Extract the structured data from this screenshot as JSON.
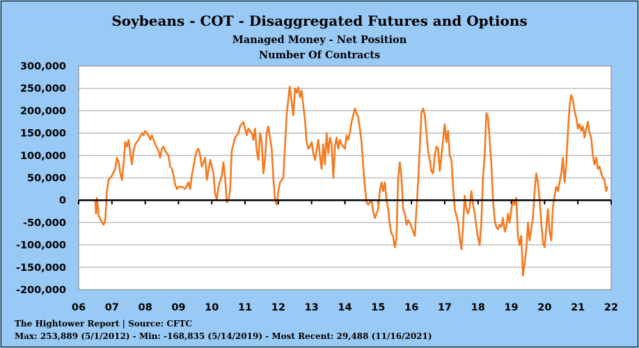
{
  "colors": {
    "background": "#99c9f5",
    "plot_area": "#ffffff",
    "series_line": "#f47a20",
    "zero_line": "#000000"
  },
  "chart_data": {
    "type": "line",
    "title": "Soybeans - COT - Disaggregated Futures and Options",
    "subtitle": "Managed Money - Net Position",
    "subtitle2": "Number Of Contracts",
    "xlabel": "",
    "ylabel": "",
    "xlim": [
      2006,
      2022
    ],
    "ylim": [
      -200000,
      300000
    ],
    "x_ticks": [
      "06",
      "07",
      "08",
      "09",
      "10",
      "11",
      "12",
      "13",
      "14",
      "15",
      "16",
      "17",
      "18",
      "19",
      "20",
      "21",
      "22"
    ],
    "y_ticks": [
      "300,000",
      "250,000",
      "200,000",
      "150,000",
      "100,000",
      "50,000",
      "0",
      "-50,000",
      "-100,000",
      "-150,000",
      "-200,000"
    ],
    "grid": true,
    "series": [
      {
        "values": [
          [
            2006.5,
            0
          ],
          [
            2006.52,
            -30000
          ],
          [
            2006.55,
            5000
          ],
          [
            2006.6,
            -35000
          ],
          [
            2006.65,
            -42000
          ],
          [
            2006.7,
            -50000
          ],
          [
            2006.75,
            -55000
          ],
          [
            2006.8,
            -45000
          ],
          [
            2006.85,
            20000
          ],
          [
            2006.9,
            45000
          ],
          [
            2006.95,
            50000
          ],
          [
            2007.0,
            55000
          ],
          [
            2007.1,
            70000
          ],
          [
            2007.15,
            95000
          ],
          [
            2007.2,
            85000
          ],
          [
            2007.25,
            60000
          ],
          [
            2007.3,
            45000
          ],
          [
            2007.35,
            80000
          ],
          [
            2007.4,
            130000
          ],
          [
            2007.45,
            120000
          ],
          [
            2007.5,
            135000
          ],
          [
            2007.55,
            105000
          ],
          [
            2007.6,
            80000
          ],
          [
            2007.65,
            110000
          ],
          [
            2007.7,
            125000
          ],
          [
            2007.8,
            135000
          ],
          [
            2007.9,
            150000
          ],
          [
            2007.95,
            145000
          ],
          [
            2008.0,
            155000
          ],
          [
            2008.1,
            145000
          ],
          [
            2008.15,
            135000
          ],
          [
            2008.2,
            145000
          ],
          [
            2008.3,
            125000
          ],
          [
            2008.4,
            110000
          ],
          [
            2008.45,
            95000
          ],
          [
            2008.5,
            115000
          ],
          [
            2008.55,
            120000
          ],
          [
            2008.6,
            110000
          ],
          [
            2008.7,
            100000
          ],
          [
            2008.75,
            75000
          ],
          [
            2008.8,
            70000
          ],
          [
            2008.85,
            55000
          ],
          [
            2008.9,
            35000
          ],
          [
            2008.95,
            25000
          ],
          [
            2009.0,
            30000
          ],
          [
            2009.1,
            30000
          ],
          [
            2009.2,
            25000
          ],
          [
            2009.3,
            40000
          ],
          [
            2009.35,
            25000
          ],
          [
            2009.4,
            55000
          ],
          [
            2009.5,
            95000
          ],
          [
            2009.55,
            110000
          ],
          [
            2009.6,
            115000
          ],
          [
            2009.65,
            100000
          ],
          [
            2009.7,
            75000
          ],
          [
            2009.8,
            95000
          ],
          [
            2009.85,
            45000
          ],
          [
            2009.95,
            90000
          ],
          [
            2010.0,
            75000
          ],
          [
            2010.05,
            60000
          ],
          [
            2010.1,
            15000
          ],
          [
            2010.15,
            0
          ],
          [
            2010.2,
            30000
          ],
          [
            2010.3,
            55000
          ],
          [
            2010.35,
            85000
          ],
          [
            2010.4,
            50000
          ],
          [
            2010.45,
            -5000
          ],
          [
            2010.5,
            0
          ],
          [
            2010.55,
            20000
          ],
          [
            2010.6,
            110000
          ],
          [
            2010.7,
            140000
          ],
          [
            2010.75,
            145000
          ],
          [
            2010.8,
            150000
          ],
          [
            2010.85,
            165000
          ],
          [
            2010.9,
            170000
          ],
          [
            2010.95,
            175000
          ],
          [
            2011.0,
            160000
          ],
          [
            2011.05,
            145000
          ],
          [
            2011.1,
            160000
          ],
          [
            2011.2,
            150000
          ],
          [
            2011.25,
            135000
          ],
          [
            2011.3,
            160000
          ],
          [
            2011.35,
            110000
          ],
          [
            2011.4,
            90000
          ],
          [
            2011.45,
            150000
          ],
          [
            2011.5,
            130000
          ],
          [
            2011.55,
            60000
          ],
          [
            2011.6,
            90000
          ],
          [
            2011.65,
            150000
          ],
          [
            2011.7,
            165000
          ],
          [
            2011.8,
            115000
          ],
          [
            2011.85,
            50000
          ],
          [
            2011.9,
            0
          ],
          [
            2011.95,
            -10000
          ],
          [
            2012.0,
            20000
          ],
          [
            2012.05,
            40000
          ],
          [
            2012.15,
            50000
          ],
          [
            2012.2,
            120000
          ],
          [
            2012.25,
            190000
          ],
          [
            2012.3,
            225000
          ],
          [
            2012.34,
            253889
          ],
          [
            2012.4,
            220000
          ],
          [
            2012.45,
            190000
          ],
          [
            2012.5,
            250000
          ],
          [
            2012.55,
            240000
          ],
          [
            2012.6,
            252000
          ],
          [
            2012.65,
            230000
          ],
          [
            2012.7,
            245000
          ],
          [
            2012.8,
            180000
          ],
          [
            2012.85,
            130000
          ],
          [
            2012.9,
            115000
          ],
          [
            2012.95,
            120000
          ],
          [
            2013.0,
            130000
          ],
          [
            2013.05,
            105000
          ],
          [
            2013.1,
            90000
          ],
          [
            2013.2,
            135000
          ],
          [
            2013.25,
            100000
          ],
          [
            2013.3,
            70000
          ],
          [
            2013.35,
            125000
          ],
          [
            2013.4,
            80000
          ],
          [
            2013.45,
            150000
          ],
          [
            2013.5,
            105000
          ],
          [
            2013.55,
            140000
          ],
          [
            2013.6,
            125000
          ],
          [
            2013.65,
            50000
          ],
          [
            2013.7,
            120000
          ],
          [
            2013.75,
            140000
          ],
          [
            2013.8,
            115000
          ],
          [
            2013.85,
            135000
          ],
          [
            2013.9,
            125000
          ],
          [
            2014.0,
            115000
          ],
          [
            2014.05,
            145000
          ],
          [
            2014.1,
            135000
          ],
          [
            2014.15,
            150000
          ],
          [
            2014.2,
            175000
          ],
          [
            2014.25,
            190000
          ],
          [
            2014.3,
            205000
          ],
          [
            2014.35,
            195000
          ],
          [
            2014.4,
            185000
          ],
          [
            2014.45,
            160000
          ],
          [
            2014.5,
            130000
          ],
          [
            2014.55,
            75000
          ],
          [
            2014.6,
            30000
          ],
          [
            2014.65,
            -5000
          ],
          [
            2014.7,
            -10000
          ],
          [
            2014.8,
            0
          ],
          [
            2014.85,
            -25000
          ],
          [
            2014.9,
            -40000
          ],
          [
            2015.0,
            -20000
          ],
          [
            2015.05,
            20000
          ],
          [
            2015.1,
            40000
          ],
          [
            2015.15,
            20000
          ],
          [
            2015.2,
            40000
          ],
          [
            2015.25,
            0
          ],
          [
            2015.3,
            -20000
          ],
          [
            2015.35,
            -55000
          ],
          [
            2015.4,
            -75000
          ],
          [
            2015.45,
            -80000
          ],
          [
            2015.5,
            -105000
          ],
          [
            2015.55,
            -85000
          ],
          [
            2015.6,
            50000
          ],
          [
            2015.65,
            85000
          ],
          [
            2015.7,
            50000
          ],
          [
            2015.75,
            -20000
          ],
          [
            2015.8,
            -30000
          ],
          [
            2015.85,
            -55000
          ],
          [
            2015.9,
            -45000
          ],
          [
            2015.95,
            -50000
          ],
          [
            2016.0,
            -60000
          ],
          [
            2016.05,
            -70000
          ],
          [
            2016.1,
            -80000
          ],
          [
            2016.15,
            -20000
          ],
          [
            2016.2,
            40000
          ],
          [
            2016.25,
            120000
          ],
          [
            2016.3,
            195000
          ],
          [
            2016.35,
            205000
          ],
          [
            2016.4,
            190000
          ],
          [
            2016.45,
            150000
          ],
          [
            2016.5,
            110000
          ],
          [
            2016.55,
            90000
          ],
          [
            2016.6,
            65000
          ],
          [
            2016.65,
            60000
          ],
          [
            2016.7,
            100000
          ],
          [
            2016.75,
            120000
          ],
          [
            2016.8,
            115000
          ],
          [
            2016.85,
            65000
          ],
          [
            2016.9,
            100000
          ],
          [
            2017.0,
            170000
          ],
          [
            2017.05,
            130000
          ],
          [
            2017.1,
            155000
          ],
          [
            2017.15,
            100000
          ],
          [
            2017.2,
            90000
          ],
          [
            2017.25,
            30000
          ],
          [
            2017.3,
            -20000
          ],
          [
            2017.35,
            -35000
          ],
          [
            2017.4,
            -50000
          ],
          [
            2017.45,
            -85000
          ],
          [
            2017.5,
            -110000
          ],
          [
            2017.55,
            -60000
          ],
          [
            2017.6,
            10000
          ],
          [
            2017.65,
            -20000
          ],
          [
            2017.7,
            -30000
          ],
          [
            2017.75,
            -15000
          ],
          [
            2017.8,
            20000
          ],
          [
            2017.85,
            -10000
          ],
          [
            2017.9,
            -30000
          ],
          [
            2017.95,
            -60000
          ],
          [
            2018.0,
            -85000
          ],
          [
            2018.05,
            -100000
          ],
          [
            2018.1,
            -50000
          ],
          [
            2018.15,
            50000
          ],
          [
            2018.2,
            100000
          ],
          [
            2018.25,
            195000
          ],
          [
            2018.3,
            185000
          ],
          [
            2018.35,
            135000
          ],
          [
            2018.4,
            80000
          ],
          [
            2018.45,
            0
          ],
          [
            2018.5,
            -45000
          ],
          [
            2018.55,
            -60000
          ],
          [
            2018.6,
            -65000
          ],
          [
            2018.65,
            -55000
          ],
          [
            2018.7,
            -60000
          ],
          [
            2018.75,
            -40000
          ],
          [
            2018.8,
            -70000
          ],
          [
            2018.85,
            -60000
          ],
          [
            2018.9,
            -30000
          ],
          [
            2018.95,
            -50000
          ],
          [
            2019.0,
            -20000
          ],
          [
            2019.05,
            0
          ],
          [
            2019.1,
            -10000
          ],
          [
            2019.15,
            5000
          ],
          [
            2019.2,
            -80000
          ],
          [
            2019.25,
            -100000
          ],
          [
            2019.3,
            -80000
          ],
          [
            2019.35,
            -168835
          ],
          [
            2019.4,
            -140000
          ],
          [
            2019.45,
            -110000
          ],
          [
            2019.5,
            -50000
          ],
          [
            2019.55,
            -90000
          ],
          [
            2019.6,
            -65000
          ],
          [
            2019.65,
            -40000
          ],
          [
            2019.7,
            20000
          ],
          [
            2019.75,
            60000
          ],
          [
            2019.8,
            40000
          ],
          [
            2019.85,
            0
          ],
          [
            2019.9,
            -50000
          ],
          [
            2019.95,
            -95000
          ],
          [
            2020.0,
            -105000
          ],
          [
            2020.05,
            -60000
          ],
          [
            2020.1,
            -20000
          ],
          [
            2020.15,
            -70000
          ],
          [
            2020.2,
            -90000
          ],
          [
            2020.25,
            -15000
          ],
          [
            2020.3,
            10000
          ],
          [
            2020.35,
            30000
          ],
          [
            2020.4,
            20000
          ],
          [
            2020.45,
            40000
          ],
          [
            2020.5,
            60000
          ],
          [
            2020.55,
            95000
          ],
          [
            2020.6,
            40000
          ],
          [
            2020.65,
            80000
          ],
          [
            2020.7,
            150000
          ],
          [
            2020.75,
            210000
          ],
          [
            2020.8,
            235000
          ],
          [
            2020.85,
            225000
          ],
          [
            2020.9,
            200000
          ],
          [
            2020.95,
            185000
          ],
          [
            2021.0,
            160000
          ],
          [
            2021.05,
            170000
          ],
          [
            2021.1,
            155000
          ],
          [
            2021.15,
            165000
          ],
          [
            2021.2,
            140000
          ],
          [
            2021.25,
            160000
          ],
          [
            2021.3,
            175000
          ],
          [
            2021.35,
            150000
          ],
          [
            2021.4,
            140000
          ],
          [
            2021.45,
            100000
          ],
          [
            2021.5,
            80000
          ],
          [
            2021.55,
            95000
          ],
          [
            2021.6,
            70000
          ],
          [
            2021.65,
            75000
          ],
          [
            2021.7,
            60000
          ],
          [
            2021.75,
            50000
          ],
          [
            2021.8,
            45000
          ],
          [
            2021.85,
            20000
          ],
          [
            2021.88,
            29488
          ]
        ]
      }
    ]
  },
  "footer": {
    "source": "The Hightower Report | Source: CFTC",
    "stats": "Max: 253,889 (5/1/2012) -  Min: -168,835 (5/14/2019) - Most Recent: 29,488 (11/16/2021)"
  }
}
